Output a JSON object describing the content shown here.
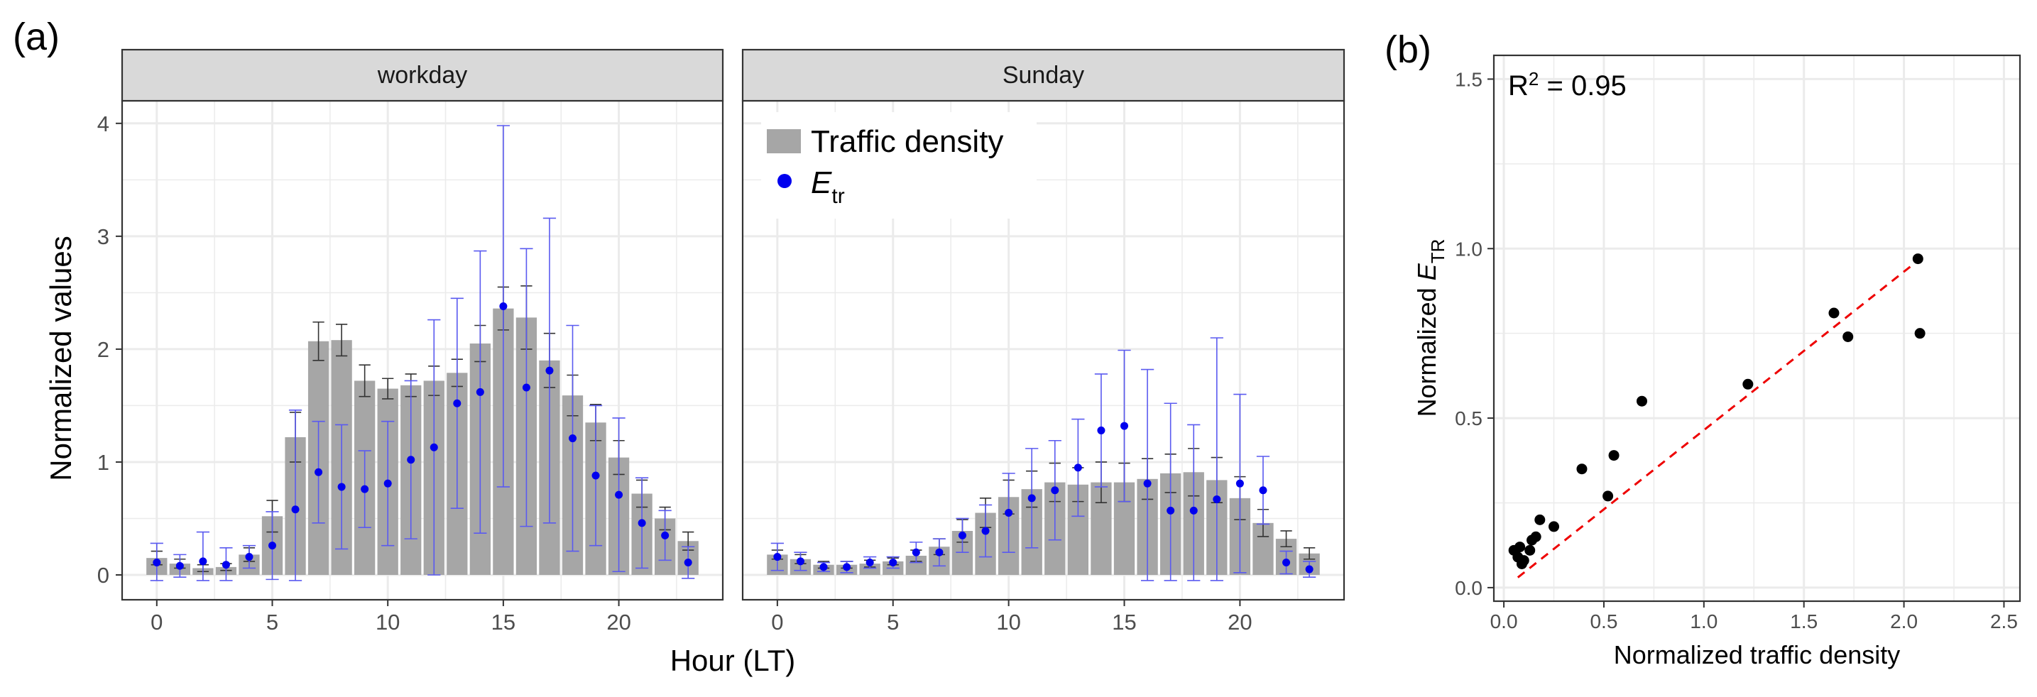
{
  "figure": {
    "panel_a_label": "(a)",
    "panel_b_label": "(b)"
  },
  "colors": {
    "bar": "#a6a6a6",
    "point": "#0000ee",
    "point_errorbar": "#5a5af0",
    "bar_errorbar": "#333333",
    "scatter_point": "#000000",
    "fit_line": "#ee0000",
    "grid": "#ebebeb",
    "strip": "#d9d9d9"
  },
  "chart_data": [
    {
      "type": "bar",
      "panel": "(a)",
      "facets": [
        "workday",
        "Sunday"
      ],
      "xlabel": "Hour (LT)",
      "ylabel": "Normalized values",
      "xlim": [
        -1.5,
        24.5
      ],
      "ylim": [
        -0.22,
        4.2
      ],
      "xticks": [
        0,
        5,
        10,
        15,
        20
      ],
      "yticks": [
        0,
        1,
        2,
        3,
        4
      ],
      "legend": {
        "position": "top-left of Sunday facet",
        "bar_label": "Traffic density",
        "point_label_main": "E",
        "point_label_sub": "tr"
      },
      "hours": [
        0,
        1,
        2,
        3,
        4,
        5,
        6,
        7,
        8,
        9,
        10,
        11,
        12,
        13,
        14,
        15,
        16,
        17,
        18,
        19,
        20,
        21,
        22,
        23
      ],
      "series": [
        {
          "facet": "workday",
          "bars": [
            0.15,
            0.1,
            0.06,
            0.07,
            0.18,
            0.52,
            1.22,
            2.07,
            2.08,
            1.72,
            1.65,
            1.68,
            1.72,
            1.79,
            2.05,
            2.36,
            2.28,
            1.9,
            1.59,
            1.35,
            1.04,
            0.72,
            0.5,
            0.3
          ],
          "bars_err": [
            0.06,
            0.04,
            0.03,
            0.03,
            0.06,
            0.14,
            0.22,
            0.17,
            0.14,
            0.14,
            0.09,
            0.1,
            0.13,
            0.12,
            0.16,
            0.19,
            0.28,
            0.24,
            0.18,
            0.16,
            0.15,
            0.12,
            0.1,
            0.08
          ],
          "points": [
            0.11,
            0.08,
            0.12,
            0.09,
            0.16,
            0.26,
            0.58,
            0.91,
            0.78,
            0.76,
            0.81,
            1.02,
            1.13,
            1.52,
            1.62,
            2.38,
            1.66,
            1.81,
            1.21,
            0.88,
            0.71,
            0.46,
            0.35,
            0.11
          ],
          "points_err": [
            0.17,
            0.1,
            0.26,
            0.15,
            0.1,
            0.3,
            0.88,
            0.45,
            0.55,
            0.34,
            0.55,
            0.7,
            1.13,
            0.93,
            1.25,
            1.6,
            1.23,
            1.35,
            1.0,
            0.62,
            0.68,
            0.4,
            0.22,
            0.14
          ]
        },
        {
          "facet": "Sunday",
          "bars": [
            0.18,
            0.14,
            0.09,
            0.09,
            0.1,
            0.12,
            0.17,
            0.25,
            0.39,
            0.55,
            0.69,
            0.76,
            0.82,
            0.8,
            0.82,
            0.82,
            0.85,
            0.9,
            0.91,
            0.84,
            0.68,
            0.46,
            0.32,
            0.19
          ],
          "bars_err": [
            0.04,
            0.04,
            0.03,
            0.03,
            0.03,
            0.03,
            0.05,
            0.07,
            0.1,
            0.13,
            0.15,
            0.16,
            0.17,
            0.15,
            0.18,
            0.17,
            0.18,
            0.17,
            0.21,
            0.2,
            0.19,
            0.12,
            0.07,
            0.05
          ],
          "points": [
            0.16,
            0.12,
            0.07,
            0.07,
            0.11,
            0.11,
            0.2,
            0.2,
            0.35,
            0.39,
            0.55,
            0.68,
            0.75,
            0.95,
            1.28,
            1.32,
            0.81,
            0.57,
            0.57,
            0.67,
            0.81,
            0.75,
            0.11,
            0.05
          ],
          "points_err": [
            0.12,
            0.08,
            0.04,
            0.05,
            0.05,
            0.05,
            0.09,
            0.12,
            0.15,
            0.23,
            0.35,
            0.44,
            0.44,
            0.43,
            0.5,
            0.67,
            1.01,
            0.95,
            0.76,
            1.43,
            0.79,
            0.3,
            0.1,
            0.07
          ]
        }
      ]
    },
    {
      "type": "scatter",
      "panel": "(b)",
      "xlabel": "Normalized traffic density",
      "ylabel_main": "Normalized E",
      "ylabel_sub": "TR",
      "xlim": [
        -0.05,
        2.58
      ],
      "ylim": [
        -0.04,
        1.57
      ],
      "xticks": [
        "0.0",
        "0.5",
        "1.0",
        "1.5",
        "2.0",
        "2.5"
      ],
      "yticks": [
        "0.0",
        "0.5",
        "1.0",
        "1.5"
      ],
      "annotation_main": "R",
      "annotation_sup": "2",
      "annotation_rest": " = 0.95",
      "points": [
        [
          0.05,
          0.11
        ],
        [
          0.07,
          0.09
        ],
        [
          0.08,
          0.12
        ],
        [
          0.09,
          0.07
        ],
        [
          0.1,
          0.08
        ],
        [
          0.13,
          0.11
        ],
        [
          0.14,
          0.14
        ],
        [
          0.16,
          0.15
        ],
        [
          0.18,
          0.2
        ],
        [
          0.25,
          0.18
        ],
        [
          0.39,
          0.35
        ],
        [
          0.52,
          0.27
        ],
        [
          0.55,
          0.39
        ],
        [
          0.69,
          0.55
        ],
        [
          1.22,
          0.6
        ],
        [
          1.65,
          0.81
        ],
        [
          1.72,
          0.74
        ],
        [
          2.07,
          0.97
        ],
        [
          2.08,
          0.75
        ]
      ],
      "fit_line": [
        [
          0.07,
          0.03
        ],
        [
          2.06,
          0.96
        ]
      ]
    }
  ]
}
